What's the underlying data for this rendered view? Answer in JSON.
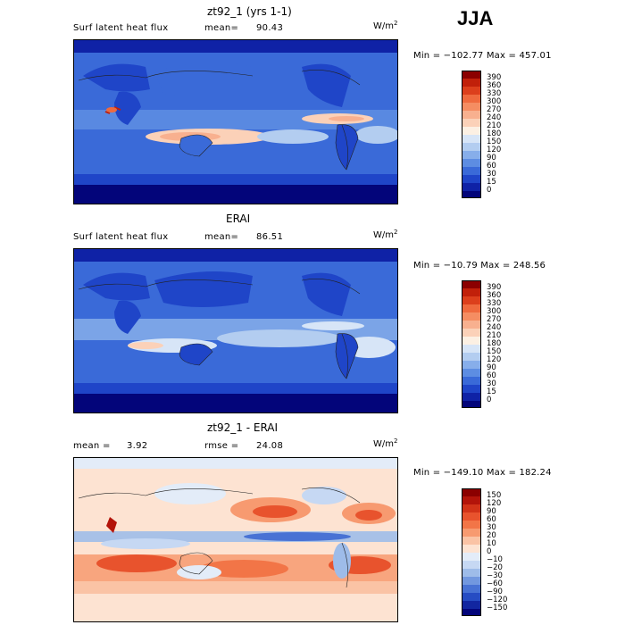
{
  "season": "JJA",
  "panels": [
    {
      "title": "zt92_1 (yrs 1-1)",
      "field": "Surf latent heat flux",
      "stat1": "mean=",
      "stat1_value": "90.43",
      "stat2": "",
      "stat2_value": "",
      "units_base": "W/m",
      "units_exp": "2",
      "minmax": "Min = −102.77 Max = 457.01"
    },
    {
      "title": "ERAI",
      "field": "Surf latent heat flux",
      "stat1": "mean=",
      "stat1_value": "86.51",
      "stat2": "",
      "stat2_value": "",
      "units_base": "W/m",
      "units_exp": "2",
      "minmax": "Min = −10.79 Max = 248.56"
    },
    {
      "title": "zt92_1 - ERAI",
      "field": "mean =",
      "stat1": "",
      "stat1_value": "3.92",
      "stat2": "rmse =",
      "stat2_value": "24.08",
      "units_base": "W/m",
      "units_exp": "2",
      "minmax": "Min = −149.10 Max = 182.24"
    }
  ],
  "chart_data": [
    {
      "type": "heatmap",
      "title": "zt92_1 (yrs 1-1)",
      "colorbar_levels": [
        "390",
        "360",
        "330",
        "300",
        "270",
        "240",
        "210",
        "180",
        "150",
        "120",
        "90",
        "60",
        "30",
        "15",
        "0"
      ],
      "colorbar_colors": [
        "#8b0000",
        "#c1200a",
        "#dc3f1c",
        "#ef6a3e",
        "#f58d62",
        "#f8b08f",
        "#fbd1b8",
        "#fcf0e3",
        "#d7e5f7",
        "#b3cdf0",
        "#87aeea",
        "#5d8de2",
        "#3a6ad8",
        "#1f45c8",
        "#0f22a6",
        "#03057a"
      ]
    },
    {
      "type": "heatmap",
      "title": "ERAI",
      "colorbar_levels": [
        "390",
        "360",
        "330",
        "300",
        "270",
        "240",
        "210",
        "180",
        "150",
        "120",
        "90",
        "60",
        "30",
        "15",
        "0"
      ],
      "colorbar_colors": [
        "#8b0000",
        "#c1200a",
        "#dc3f1c",
        "#ef6a3e",
        "#f58d62",
        "#f8b08f",
        "#fbd1b8",
        "#fcf0e3",
        "#d7e5f7",
        "#b3cdf0",
        "#87aeea",
        "#5d8de2",
        "#3a6ad8",
        "#1f45c8",
        "#0f22a6",
        "#03057a"
      ]
    },
    {
      "type": "heatmap",
      "title": "zt92_1 - ERAI",
      "colorbar_levels": [
        "150",
        "120",
        "90",
        "60",
        "30",
        "20",
        "10",
        "0",
        "−10",
        "−20",
        "−30",
        "−60",
        "−90",
        "−120",
        "−150"
      ],
      "colorbar_colors": [
        "#8b0000",
        "#b3140a",
        "#d23318",
        "#e8532d",
        "#f27547",
        "#f79a70",
        "#fac3a5",
        "#fde3d2",
        "#e3ecf8",
        "#c6d8f3",
        "#9ebce9",
        "#7298df",
        "#4872d4",
        "#264cc3",
        "#1226a0",
        "#03057a"
      ]
    }
  ]
}
